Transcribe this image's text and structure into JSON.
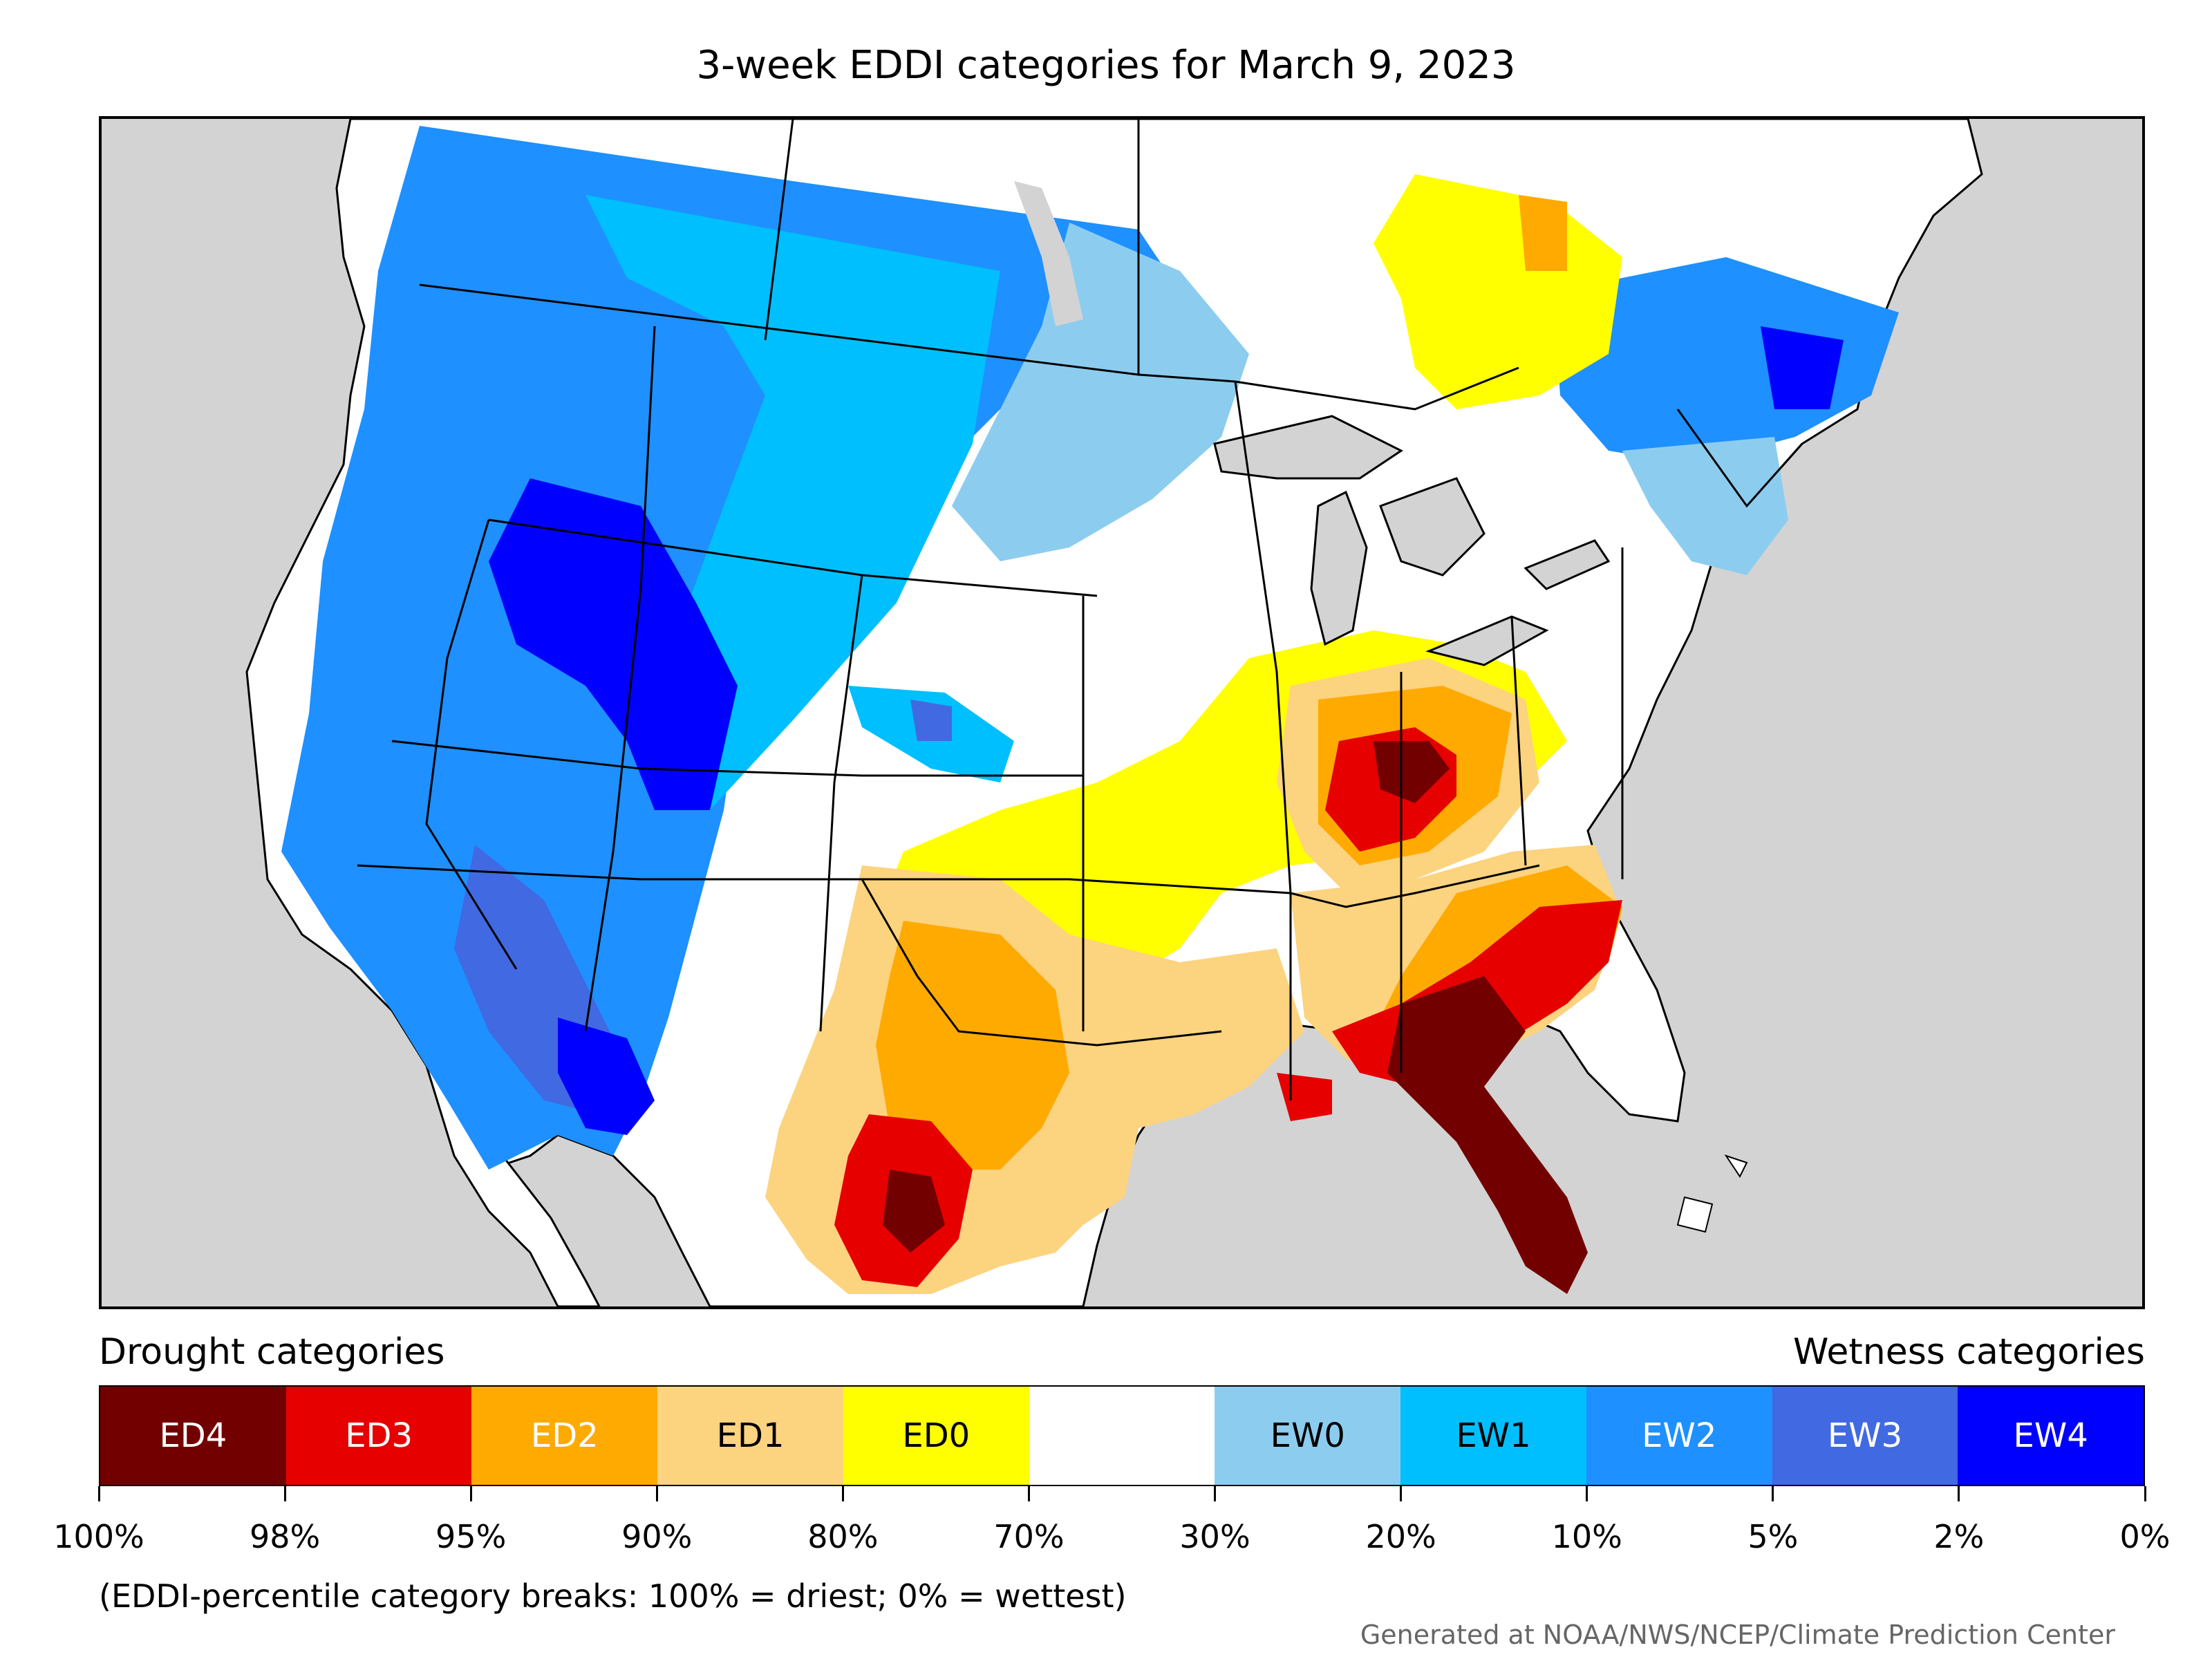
{
  "title": "3-week EDDI categories for March 9, 2023",
  "legend": {
    "drought_heading": "Drought categories",
    "wetness_heading": "Wetness categories",
    "categories": [
      {
        "label": "ED4",
        "color": "#730000",
        "text_color": "#ffffff"
      },
      {
        "label": "ED3",
        "color": "#e60000",
        "text_color": "#ffffff"
      },
      {
        "label": "ED2",
        "color": "#ffaa00",
        "text_color": "#ffffff"
      },
      {
        "label": "ED1",
        "color": "#fcd37f",
        "text_color": "#000000"
      },
      {
        "label": "ED0",
        "color": "#ffff00",
        "text_color": "#000000"
      },
      {
        "label": "",
        "color": "#ffffff",
        "text_color": "#000000"
      },
      {
        "label": "EW0",
        "color": "#8ccdef",
        "text_color": "#000000"
      },
      {
        "label": "EW1",
        "color": "#00bfff",
        "text_color": "#000000"
      },
      {
        "label": "EW2",
        "color": "#1e90ff",
        "text_color": "#ffffff"
      },
      {
        "label": "EW3",
        "color": "#4169e1",
        "text_color": "#ffffff"
      },
      {
        "label": "EW4",
        "color": "#0000ff",
        "text_color": "#ffffff"
      }
    ],
    "tick_labels": [
      "100%",
      "98%",
      "95%",
      "90%",
      "80%",
      "70%",
      "30%",
      "20%",
      "10%",
      "5%",
      "2%",
      "0%"
    ]
  },
  "note": "(EDDI-percentile category breaks: 100% = driest; 0% = wettest)",
  "credit": "Generated at NOAA/NWS/NCEP/Climate Prediction Center",
  "map_colors": {
    "ocean": "#d3d3d3",
    "land": "#ffffff",
    "boundary": "#000000"
  }
}
